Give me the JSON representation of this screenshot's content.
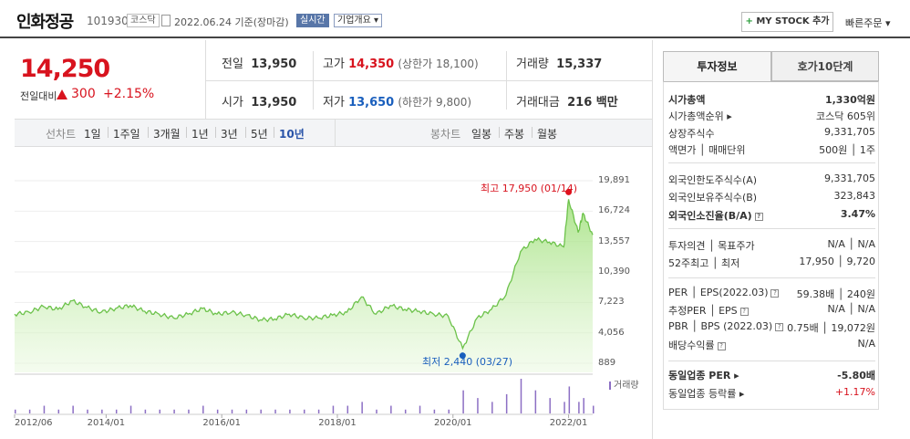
{
  "header": {
    "stock_name": "인화정공",
    "stock_code": "101930",
    "market_badge": "코스닥",
    "date_text": "2022.06.24 기준(장마감)",
    "live_badge": "실시간",
    "company_info_label": "기업개요 ▾",
    "mystock_label": "MY STOCK 추가",
    "mystock_plus": "+",
    "quick_order_label": "빠른주문 ▾"
  },
  "price": {
    "current": "14,250",
    "prev_label": "전일대비",
    "change": "300",
    "change_pct": "+2.15%"
  },
  "quote": {
    "prev_close": {
      "label": "전일",
      "value": "13,950"
    },
    "high": {
      "label": "고가",
      "value": "14,350",
      "limit": "(상한가 18,100)"
    },
    "volume": {
      "label": "거래량",
      "value": "15,337"
    },
    "open": {
      "label": "시가",
      "value": "13,950"
    },
    "low": {
      "label": "저가",
      "value": "13,650",
      "limit": "(하한가 9,800)"
    },
    "amount": {
      "label": "거래대금",
      "value": "216 백만"
    }
  },
  "chart_tabs": {
    "line_label": "선차트",
    "periods": [
      "1일",
      "1주일",
      "3개월",
      "1년",
      "3년",
      "5년",
      "10년"
    ],
    "selected_period": "10년",
    "candle_label": "봉차트",
    "candles": [
      "일봉",
      "주봉",
      "월봉"
    ]
  },
  "chart_data": {
    "type": "area",
    "y_ticks": [
      "19,891",
      "16,724",
      "13,557",
      "10,390",
      "7,223",
      "4,056",
      "889"
    ],
    "ylim": [
      889,
      19891
    ],
    "x_ticks": [
      "2012/06",
      "2014/01",
      "2016/01",
      "2018/01",
      "2020/01",
      "2022/01"
    ],
    "max_label": "최고 17,950 (01/14)",
    "min_label": "최저 2,440 (03/27)",
    "volume_legend": "거래량",
    "series": [
      {
        "x": [
          "2012/06",
          "2012/09",
          "2012/12",
          "2013/03",
          "2013/06",
          "2013/09",
          "2013/12",
          "2014/03",
          "2014/06",
          "2014/09",
          "2014/12",
          "2015/03",
          "2015/06",
          "2015/09",
          "2015/12",
          "2016/03",
          "2016/06",
          "2016/09",
          "2016/12",
          "2017/03",
          "2017/06",
          "2017/09",
          "2017/12",
          "2018/03",
          "2018/06",
          "2018/09",
          "2018/12",
          "2019/03",
          "2019/06",
          "2019/09",
          "2019/12",
          "2020/03",
          "2020/06",
          "2020/09",
          "2020/12",
          "2021/03",
          "2021/06",
          "2021/09",
          "2021/12",
          "2022/01",
          "2022/03",
          "2022/04",
          "2022/06"
        ],
        "values": [
          6000,
          6200,
          6800,
          6500,
          7400,
          6700,
          6200,
          6600,
          6900,
          6300,
          6000,
          5600,
          6000,
          6600,
          6000,
          6200,
          5900,
          5400,
          5500,
          6000,
          5600,
          5600,
          5900,
          6200,
          7800,
          6000,
          6900,
          6500,
          6300,
          6000,
          5800,
          2440,
          5600,
          6500,
          8000,
          12500,
          13800,
          13500,
          13000,
          17950,
          14500,
          16500,
          14250
        ]
      }
    ],
    "volume": [
      1,
      1,
      2,
      1,
      2,
      1,
      1,
      1,
      2,
      1,
      1,
      1,
      1,
      2,
      1,
      1,
      1,
      1,
      1,
      1,
      1,
      1,
      2,
      2,
      3,
      1,
      2,
      1,
      2,
      1,
      1,
      6,
      4,
      3,
      5,
      9,
      6,
      4,
      3,
      7,
      3,
      4,
      2
    ]
  },
  "side": {
    "tabs": [
      "투자정보",
      "호가10단계"
    ],
    "rows": [
      {
        "k": "시가총액",
        "v": "1,330억원",
        "bold": true
      },
      {
        "k": "시가총액순위 ▸",
        "v": "코스닥 605위"
      },
      {
        "k": "상장주식수",
        "v": "9,331,705"
      },
      {
        "k": "액면가 │ 매매단위",
        "v": "500원 │ 1주"
      },
      {
        "k": "외국인한도주식수(A)",
        "v": "9,331,705"
      },
      {
        "k": "외국인보유주식수(B)",
        "v": "323,843"
      },
      {
        "k": "외국인소진율(B/A)",
        "v": "3.47%",
        "bold": true,
        "q": true
      },
      {
        "k": "투자의견 │ 목표주가",
        "v": "N/A │ N/A"
      },
      {
        "k": "52주최고 │ 최저",
        "v": "17,950 │ 9,720"
      },
      {
        "k": "PER │ EPS(2022.03)",
        "v": "59.38배 │ 240원",
        "q": true
      },
      {
        "k": "추정PER │ EPS",
        "v": "N/A │ N/A",
        "q": true
      },
      {
        "k": "PBR │ BPS (2022.03)",
        "v": "0.75배 │ 19,072원",
        "q": true
      },
      {
        "k": "배당수익률",
        "v": "N/A",
        "q": true
      },
      {
        "k": "동일업종 PER ▸",
        "v": "-5.80배",
        "bold": true
      },
      {
        "k": "동일업종 등락률 ▸",
        "v": "+1.17%",
        "red": true
      }
    ]
  }
}
